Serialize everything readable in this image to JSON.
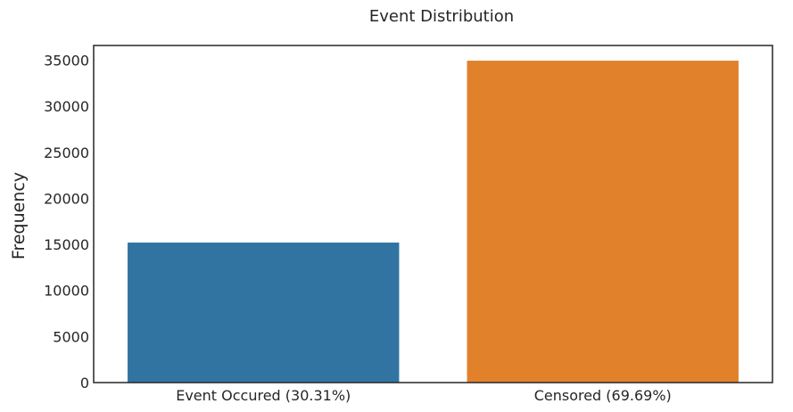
{
  "chart_data": {
    "type": "bar",
    "title": "Event Distribution",
    "xlabel": "",
    "ylabel": "Frequency",
    "categories": [
      "Event Occured (30.31%)",
      "Censored (69.69%)"
    ],
    "values": [
      15200,
      34950
    ],
    "colors": [
      "#3274a1",
      "#e1812c"
    ],
    "ylim": [
      0,
      36600
    ],
    "yticks": [
      0,
      5000,
      10000,
      15000,
      20000,
      25000,
      30000,
      35000
    ],
    "grid": false,
    "legend": "none"
  }
}
